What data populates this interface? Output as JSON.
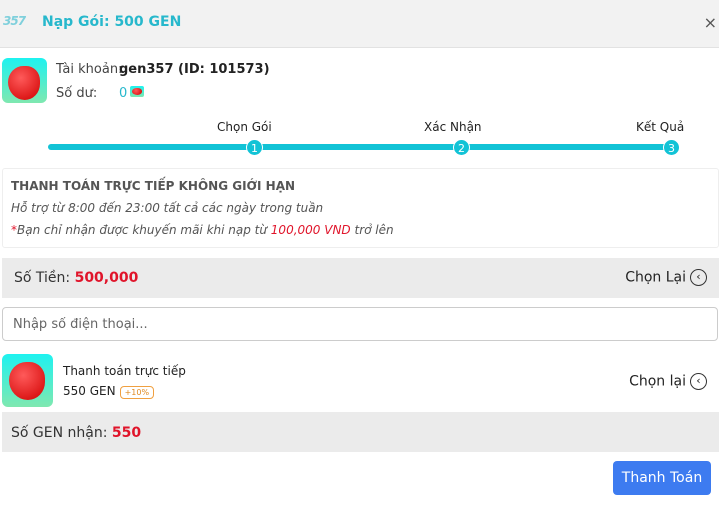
{
  "header": {
    "logo": "357",
    "title": "Nạp Gói: 500 GEN",
    "close": "×"
  },
  "account": {
    "account_label": "Tài khoản:",
    "account_value": "gen357 (ID: 101573)",
    "balance_label": "Số dư:",
    "balance_value": "0"
  },
  "steps": [
    {
      "label": "Chọn Gói",
      "num": "1"
    },
    {
      "label": "Xác Nhận",
      "num": "2"
    },
    {
      "label": "Kết Quả",
      "num": "3"
    }
  ],
  "info": {
    "title": "THANH TOÁN TRỰC TIẾP KHÔNG GIỚI HẠN",
    "hours": "Hỗ trợ từ 8:00 đến 23:00 tất cả các ngày trong tuần",
    "note_prefix": "*",
    "note_text": "Bạn chỉ nhận được khuyến mãi khi nạp từ ",
    "note_amount": "100,000 VND",
    "note_suffix": " trở lên"
  },
  "amount": {
    "label": "Số Tiền: ",
    "value": "500,000",
    "reselect": "Chọn Lại"
  },
  "phone": {
    "placeholder": "Nhập số điện thoại..."
  },
  "package": {
    "name": "Thanh toán trực tiếp",
    "gen": "550 GEN",
    "bonus": "+10%",
    "reselect": "Chọn lại"
  },
  "received": {
    "label": "Số GEN nhận: ",
    "value": "550"
  },
  "pay_button": "Thanh Toán",
  "colors": {
    "accent": "#12c3d6",
    "red": "#e0142a",
    "button": "#3d7bf0"
  }
}
